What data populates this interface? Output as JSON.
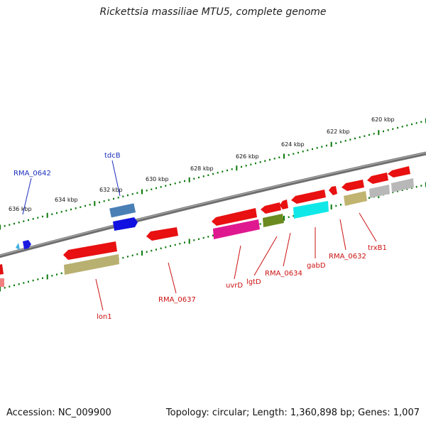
{
  "title": "Rickettsia massiliae MTU5, complete genome",
  "accession": "Accession: NC_009900",
  "summary": "Topology: circular; Length: 1,360,898 bp; Genes: 1,007",
  "colors": {
    "backbone": "#808080",
    "ticks": "#0a7a0a",
    "tick_label": "#111111",
    "label_forward": "#1a2fbf",
    "label_reverse": "#cc1111"
  },
  "scale_labels": [
    "636 kbp",
    "634 kbp",
    "632 kbp",
    "630 kbp",
    "628 kbp",
    "626 kbp",
    "624 kbp",
    "622 kbp",
    "620 kbp"
  ],
  "gene_labels_forward": [
    "RMA_0642",
    "tdcB"
  ],
  "gene_labels_reverse": [
    "lon1",
    "RMA_0637",
    "uvrD",
    "lgtD",
    "RMA_0634",
    "gabD",
    "RMA_0632",
    "trxB1"
  ]
}
